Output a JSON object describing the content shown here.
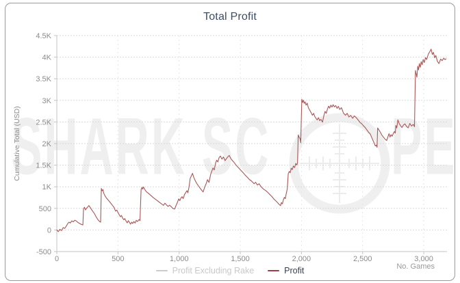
{
  "card": {
    "border_color": "#9a9a9a",
    "background": "#ffffff"
  },
  "chart": {
    "title": "Total Profit",
    "title_color": "#3d4b60",
    "ylabel": "Cumulative Total (USD)",
    "xlabel": "No. Games",
    "axis_color": "#c3c3c3",
    "grid_color": "#dadada",
    "vgrid_color": "#e4e4e4",
    "tick_text_color": "#8c8c8c",
    "watermark": {
      "text_left": "SHARK SC",
      "text_right": "PE",
      "color": "#efefef",
      "icon": "rifle-scope-reticle"
    },
    "legend": {
      "items": [
        {
          "label": "Profit Excluding Rake",
          "line_color": "#cbcbcb",
          "text_color": "#c9c9c9",
          "active": false
        },
        {
          "label": "Profit",
          "line_color": "#9a4040",
          "text_color": "#36404f",
          "active": true
        }
      ]
    }
  },
  "chart_data": {
    "type": "line",
    "title": "Total Profit",
    "xlabel": "No. Games",
    "ylabel": "Cumulative Total (USD)",
    "xlim": [
      0,
      3190
    ],
    "ylim": [
      -500,
      4500
    ],
    "x_ticks": [
      0,
      500,
      1000,
      1500,
      2000,
      2500,
      3000
    ],
    "x_tick_labels": [
      "0",
      "500",
      "1,000",
      "1,500",
      "2,000",
      "2,500",
      "3,000"
    ],
    "y_ticks": [
      -500,
      0,
      500,
      1000,
      1500,
      2000,
      2500,
      3000,
      3500,
      4000,
      4500
    ],
    "y_tick_labels": [
      "-500",
      "0",
      "500",
      "1K",
      "1.5K",
      "2K",
      "2.5K",
      "3K",
      "3.5K",
      "4K",
      "4.5K"
    ],
    "grid": true,
    "legend_position": "bottom",
    "series": [
      {
        "name": "Profit Excluding Rake",
        "color": "#cbcbcb",
        "visible": false,
        "points": []
      },
      {
        "name": "Profit",
        "color": "#ab5656",
        "visible": true,
        "points": [
          [
            0,
            0
          ],
          [
            12,
            -40
          ],
          [
            25,
            15
          ],
          [
            38,
            -15
          ],
          [
            52,
            55
          ],
          [
            64,
            35
          ],
          [
            78,
            90
          ],
          [
            90,
            150
          ],
          [
            100,
            180
          ],
          [
            110,
            160
          ],
          [
            122,
            210
          ],
          [
            134,
            190
          ],
          [
            148,
            225
          ],
          [
            160,
            205
          ],
          [
            172,
            175
          ],
          [
            186,
            150
          ],
          [
            200,
            130
          ],
          [
            213,
            115
          ],
          [
            218,
            490
          ],
          [
            226,
            525
          ],
          [
            234,
            465
          ],
          [
            244,
            505
          ],
          [
            255,
            540
          ],
          [
            262,
            565
          ],
          [
            272,
            525
          ],
          [
            282,
            480
          ],
          [
            294,
            430
          ],
          [
            306,
            385
          ],
          [
            320,
            310
          ],
          [
            334,
            245
          ],
          [
            348,
            200
          ],
          [
            358,
            180
          ],
          [
            364,
            960
          ],
          [
            370,
            905
          ],
          [
            377,
            935
          ],
          [
            384,
            850
          ],
          [
            392,
            800
          ],
          [
            402,
            755
          ],
          [
            414,
            710
          ],
          [
            428,
            665
          ],
          [
            442,
            615
          ],
          [
            456,
            565
          ],
          [
            468,
            520
          ],
          [
            480,
            435
          ],
          [
            490,
            460
          ],
          [
            500,
            405
          ],
          [
            510,
            355
          ],
          [
            520,
            305
          ],
          [
            529,
            335
          ],
          [
            538,
            275
          ],
          [
            548,
            235
          ],
          [
            556,
            265
          ],
          [
            566,
            205
          ],
          [
            576,
            165
          ],
          [
            585,
            215
          ],
          [
            594,
            175
          ],
          [
            603,
            135
          ],
          [
            612,
            180
          ],
          [
            620,
            150
          ],
          [
            630,
            195
          ],
          [
            640,
            160
          ],
          [
            650,
            225
          ],
          [
            660,
            195
          ],
          [
            672,
            240
          ],
          [
            680,
            215
          ],
          [
            689,
            930
          ],
          [
            696,
            985
          ],
          [
            702,
            945
          ],
          [
            708,
            995
          ],
          [
            716,
            955
          ],
          [
            724,
            915
          ],
          [
            734,
            880
          ],
          [
            748,
            850
          ],
          [
            762,
            815
          ],
          [
            776,
            780
          ],
          [
            790,
            745
          ],
          [
            804,
            715
          ],
          [
            818,
            685
          ],
          [
            832,
            655
          ],
          [
            846,
            625
          ],
          [
            860,
            595
          ],
          [
            872,
            570
          ],
          [
            884,
            620
          ],
          [
            896,
            580
          ],
          [
            910,
            545
          ],
          [
            922,
            575
          ],
          [
            935,
            540
          ],
          [
            948,
            500
          ],
          [
            963,
            484
          ],
          [
            974,
            560
          ],
          [
            986,
            640
          ],
          [
            997,
            720
          ],
          [
            1006,
            680
          ],
          [
            1016,
            745
          ],
          [
            1024,
            770
          ],
          [
            1033,
            725
          ],
          [
            1044,
            820
          ],
          [
            1055,
            870
          ],
          [
            1064,
            910
          ],
          [
            1072,
            860
          ],
          [
            1081,
            1000
          ],
          [
            1090,
            1190
          ],
          [
            1098,
            1240
          ],
          [
            1109,
            1310
          ],
          [
            1118,
            1230
          ],
          [
            1128,
            1160
          ],
          [
            1142,
            1085
          ],
          [
            1156,
            1025
          ],
          [
            1172,
            965
          ],
          [
            1186,
            915
          ],
          [
            1196,
            880
          ],
          [
            1210,
            1000
          ],
          [
            1222,
            1080
          ],
          [
            1232,
            1165
          ],
          [
            1244,
            1100
          ],
          [
            1258,
            1290
          ],
          [
            1270,
            1380
          ],
          [
            1277,
            1435
          ],
          [
            1287,
            1390
          ],
          [
            1297,
            1540
          ],
          [
            1307,
            1615
          ],
          [
            1317,
            1575
          ],
          [
            1327,
            1675
          ],
          [
            1338,
            1710
          ],
          [
            1350,
            1640
          ],
          [
            1362,
            1690
          ],
          [
            1375,
            1605
          ],
          [
            1388,
            1655
          ],
          [
            1400,
            1700
          ],
          [
            1410,
            1725
          ],
          [
            1422,
            1655
          ],
          [
            1436,
            1605
          ],
          [
            1450,
            1560
          ],
          [
            1466,
            1500
          ],
          [
            1484,
            1445
          ],
          [
            1502,
            1390
          ],
          [
            1520,
            1335
          ],
          [
            1538,
            1275
          ],
          [
            1556,
            1225
          ],
          [
            1574,
            1170
          ],
          [
            1592,
            1130
          ],
          [
            1613,
            1070
          ],
          [
            1626,
            1105
          ],
          [
            1640,
            1040
          ],
          [
            1654,
            1070
          ],
          [
            1670,
            1000
          ],
          [
            1688,
            950
          ],
          [
            1708,
            912
          ],
          [
            1724,
            870
          ],
          [
            1740,
            825
          ],
          [
            1756,
            780
          ],
          [
            1773,
            722
          ],
          [
            1788,
            680
          ],
          [
            1801,
            643
          ],
          [
            1815,
            600
          ],
          [
            1829,
            563
          ],
          [
            1837,
            635
          ],
          [
            1844,
            605
          ],
          [
            1852,
            695
          ],
          [
            1860,
            755
          ],
          [
            1868,
            725
          ],
          [
            1876,
            845
          ],
          [
            1884,
            945
          ],
          [
            1892,
            1300
          ],
          [
            1900,
            1355
          ],
          [
            1908,
            1325
          ],
          [
            1916,
            1430
          ],
          [
            1925,
            1395
          ],
          [
            1934,
            1480
          ],
          [
            1944,
            1445
          ],
          [
            1954,
            1540
          ],
          [
            1962,
            1505
          ],
          [
            1968,
            1545
          ],
          [
            1974,
            2200
          ],
          [
            1981,
            2145
          ],
          [
            1988,
            2120
          ],
          [
            1994,
            2020
          ],
          [
            2003,
            3025
          ],
          [
            2010,
            2950
          ],
          [
            2016,
            3005
          ],
          [
            2023,
            2930
          ],
          [
            2030,
            2965
          ],
          [
            2038,
            2890
          ],
          [
            2047,
            2935
          ],
          [
            2056,
            2830
          ],
          [
            2066,
            2780
          ],
          [
            2078,
            2720
          ],
          [
            2090,
            2655
          ],
          [
            2100,
            2700
          ],
          [
            2110,
            2620
          ],
          [
            2120,
            2580
          ],
          [
            2129,
            2548
          ],
          [
            2139,
            2600
          ],
          [
            2149,
            2530
          ],
          [
            2159,
            2560
          ],
          [
            2172,
            2495
          ],
          [
            2183,
            2645
          ],
          [
            2193,
            2745
          ],
          [
            2203,
            2700
          ],
          [
            2213,
            2800
          ],
          [
            2222,
            2865
          ],
          [
            2231,
            2820
          ],
          [
            2240,
            2890
          ],
          [
            2250,
            2845
          ],
          [
            2259,
            2900
          ],
          [
            2269,
            2850
          ],
          [
            2280,
            2880
          ],
          [
            2291,
            2815
          ],
          [
            2302,
            2860
          ],
          [
            2313,
            2790
          ],
          [
            2327,
            2830
          ],
          [
            2343,
            2705
          ],
          [
            2360,
            2655
          ],
          [
            2374,
            2700
          ],
          [
            2388,
            2615
          ],
          [
            2403,
            2650
          ],
          [
            2418,
            2585
          ],
          [
            2433,
            2640
          ],
          [
            2448,
            2600
          ],
          [
            2464,
            2545
          ],
          [
            2480,
            2485
          ],
          [
            2492,
            2460
          ],
          [
            2506,
            2415
          ],
          [
            2520,
            2375
          ],
          [
            2534,
            2320
          ],
          [
            2548,
            2265
          ],
          [
            2562,
            2225
          ],
          [
            2576,
            2130
          ],
          [
            2590,
            2040
          ],
          [
            2604,
            1945
          ],
          [
            2612,
            1965
          ],
          [
            2618,
            1913
          ],
          [
            2623,
            2360
          ],
          [
            2634,
            2310
          ],
          [
            2646,
            2255
          ],
          [
            2658,
            2195
          ],
          [
            2671,
            2145
          ],
          [
            2684,
            2100
          ],
          [
            2697,
            2070
          ],
          [
            2707,
            2155
          ],
          [
            2716,
            2230
          ],
          [
            2724,
            2150
          ],
          [
            2733,
            2205
          ],
          [
            2742,
            2170
          ],
          [
            2752,
            2240
          ],
          [
            2761,
            2280
          ],
          [
            2767,
            2240
          ],
          [
            2772,
            2420
          ],
          [
            2779,
            2360
          ],
          [
            2789,
            2548
          ],
          [
            2799,
            2465
          ],
          [
            2810,
            2415
          ],
          [
            2822,
            2370
          ],
          [
            2834,
            2430
          ],
          [
            2846,
            2455
          ],
          [
            2858,
            2400
          ],
          [
            2872,
            2362
          ],
          [
            2886,
            2465
          ],
          [
            2900,
            2405
          ],
          [
            2914,
            2445
          ],
          [
            2924,
            2390
          ],
          [
            2932,
            3690
          ],
          [
            2938,
            3610
          ],
          [
            2944,
            3535
          ],
          [
            2951,
            3790
          ],
          [
            2957,
            3705
          ],
          [
            2964,
            3850
          ],
          [
            2971,
            3765
          ],
          [
            2979,
            3895
          ],
          [
            2987,
            3825
          ],
          [
            2995,
            3945
          ],
          [
            3004,
            3875
          ],
          [
            3014,
            3990
          ],
          [
            3024,
            3945
          ],
          [
            3038,
            4075
          ],
          [
            3050,
            4130
          ],
          [
            3060,
            4185
          ],
          [
            3070,
            4060
          ],
          [
            3079,
            4110
          ],
          [
            3089,
            3985
          ],
          [
            3099,
            4040
          ],
          [
            3111,
            3905
          ],
          [
            3124,
            3850
          ],
          [
            3138,
            3955
          ],
          [
            3150,
            3920
          ],
          [
            3163,
            3975
          ],
          [
            3174,
            3945
          ],
          [
            3183,
            3960
          ]
        ]
      }
    ]
  }
}
